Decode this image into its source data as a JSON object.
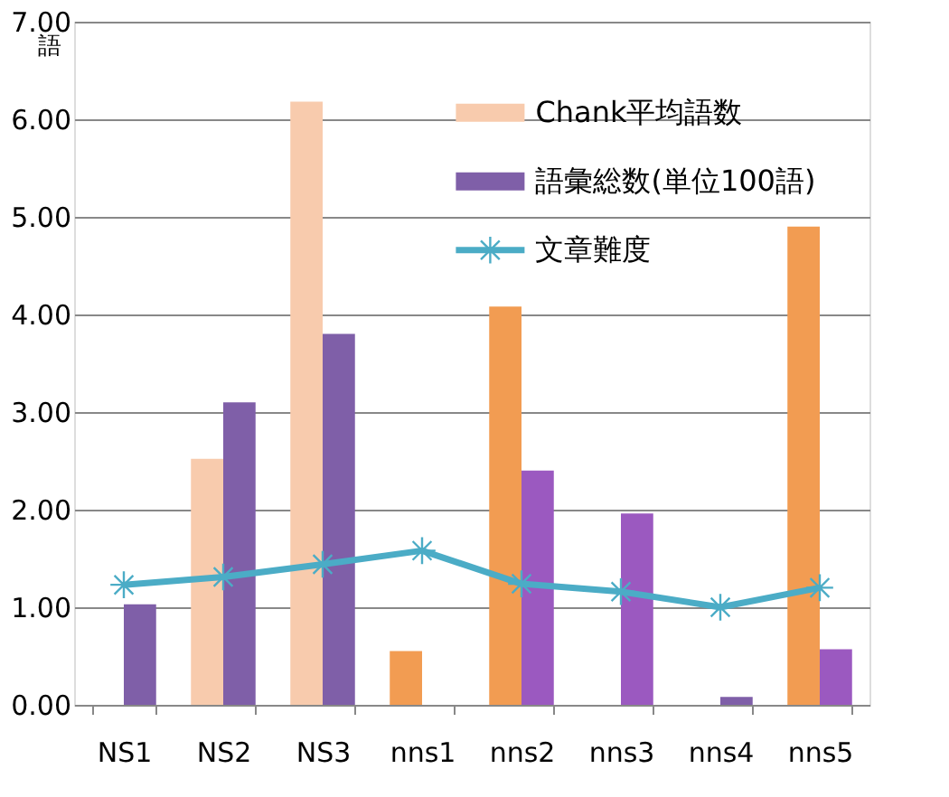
{
  "chart_data": {
    "type": "bar",
    "ylabel": "語",
    "categories": [
      "NS1",
      "NS2",
      "NS3",
      "nns1",
      "nns2",
      "nns3",
      "nns4",
      "nns5"
    ],
    "series": [
      {
        "name": "Chank平均語数",
        "color": "#f8cbad",
        "colors": [
          "#f8cbad",
          "#f8cbad",
          "#f8cbad",
          "#f29c52",
          "#f29c52",
          "#f29c52",
          "#f29c52",
          "#f29c52"
        ],
        "values": [
          null,
          2.52,
          6.18,
          0.55,
          4.08,
          null,
          null,
          4.9
        ]
      },
      {
        "name": "語彙総数(単位100語)",
        "color": "#7f5fa8",
        "colors": [
          "#7f5fa8",
          "#7f5fa8",
          "#7f5fa8",
          "#9b59c0",
          "#9b59c0",
          "#9b59c0",
          "#7f5fa8",
          "#9b59c0"
        ],
        "values": [
          1.03,
          3.1,
          3.8,
          null,
          2.4,
          1.96,
          0.08,
          0.57
        ]
      },
      {
        "name": "文章難度",
        "type": "line",
        "color": "#4bacc6",
        "marker": "cross",
        "line_style": "solid",
        "values": [
          1.23,
          1.31,
          1.44,
          1.58,
          1.24,
          1.16,
          1.0,
          1.2
        ]
      }
    ],
    "ylim": [
      0,
      7
    ],
    "yticks": [
      {
        "value": 0,
        "label": "0.00"
      },
      {
        "value": 1,
        "label": "1.00"
      },
      {
        "value": 2,
        "label": "2.00"
      },
      {
        "value": 3,
        "label": "3.00"
      },
      {
        "value": 4,
        "label": "4.00"
      },
      {
        "value": 5,
        "label": "5.00"
      },
      {
        "value": 6,
        "label": "6.00"
      },
      {
        "value": 7,
        "label": "7.00"
      }
    ],
    "grid": "y",
    "legend": "top right"
  }
}
